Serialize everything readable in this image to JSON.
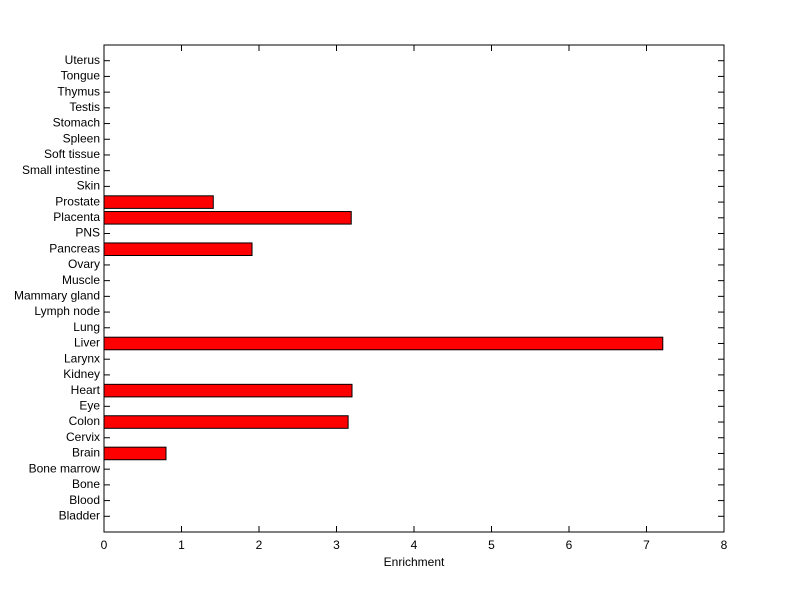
{
  "chart_data": {
    "type": "barh",
    "xlabel": "Enrichment",
    "categories": [
      "Bladder",
      "Blood",
      "Bone",
      "Bone marrow",
      "Brain",
      "Cervix",
      "Colon",
      "Eye",
      "Heart",
      "Kidney",
      "Larynx",
      "Liver",
      "Lung",
      "Lymph node",
      "Mammary gland",
      "Muscle",
      "Ovary",
      "Pancreas",
      "PNS",
      "Placenta",
      "Prostate",
      "Skin",
      "Small intestine",
      "Soft tissue",
      "Spleen",
      "Stomach",
      "Testis",
      "Thymus",
      "Tongue",
      "Uterus"
    ],
    "values": [
      0,
      0,
      0,
      0,
      0.8,
      0,
      3.15,
      0,
      3.2,
      0,
      0,
      7.21,
      0,
      0,
      0,
      0,
      0,
      1.91,
      0,
      3.19,
      1.41,
      0,
      0,
      0,
      0,
      0,
      0,
      0,
      0,
      0
    ],
    "color": "#ff0000",
    "xlim": [
      0,
      8
    ],
    "xticks": [
      0,
      1,
      2,
      3,
      4,
      5,
      6,
      7,
      8
    ]
  }
}
